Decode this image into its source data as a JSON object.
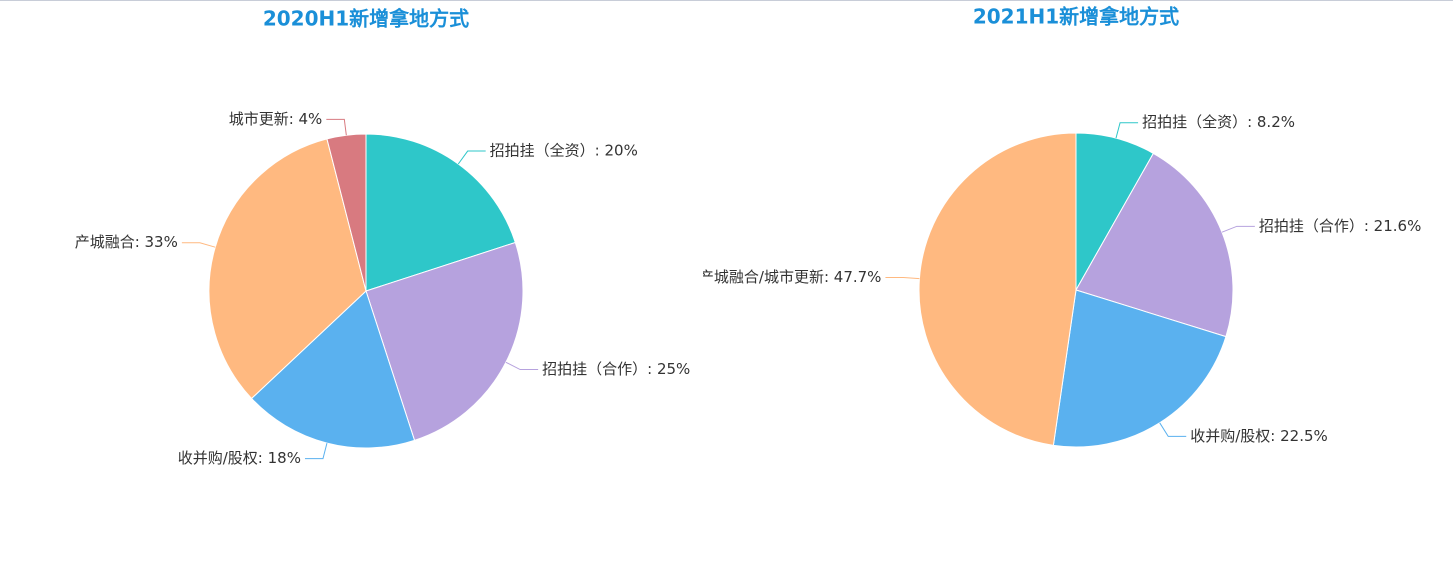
{
  "chart_data": [
    {
      "type": "pie",
      "title": "2020H1新增拿地方式",
      "values": [
        20,
        25,
        18,
        33,
        4
      ],
      "value_labels": [
        "招拍挂（全资）: 20%",
        "招拍挂（合作）: 25%",
        "收并购/股权: 18%",
        "产城融合: 33%",
        "城市更新: 4%"
      ],
      "colors": [
        "#2ec7c9",
        "#b6a2de",
        "#5ab1ef",
        "#ffb980",
        "#d87a80"
      ]
    },
    {
      "type": "pie",
      "title": "2021H1新增拿地方式",
      "values": [
        8.2,
        21.6,
        22.5,
        47.7
      ],
      "value_labels": [
        "招拍挂（全资）: 8.2%",
        "招拍挂（合作）: 21.6%",
        "收并购/股权: 22.5%",
        "产城融合/城市更新: 47.7%"
      ],
      "colors": [
        "#2ec7c9",
        "#b6a2de",
        "#5ab1ef",
        "#ffb980"
      ]
    }
  ]
}
